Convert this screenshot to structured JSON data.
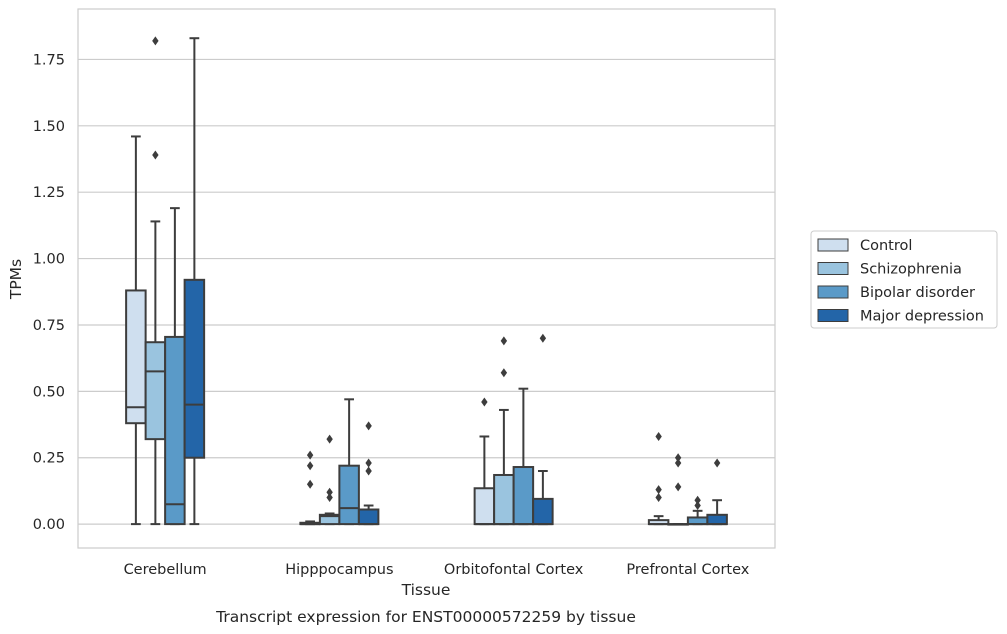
{
  "chart_data": {
    "type": "box",
    "title": "",
    "caption": "Transcript expression for ENST00000572259 by tissue",
    "xlabel": "Tissue",
    "ylabel": "TPMs",
    "ylim": [
      -0.09,
      1.94
    ],
    "yticks": [
      "0.00",
      "0.25",
      "0.50",
      "0.75",
      "1.00",
      "1.25",
      "1.50",
      "1.75"
    ],
    "ytick_values": [
      0,
      0.25,
      0.5,
      0.75,
      1.0,
      1.25,
      1.5,
      1.75
    ],
    "grid": true,
    "legend_position": "right",
    "categories": [
      "Cerebellum",
      "Hipppocampus",
      "Orbitofontal Cortex",
      "Prefrontal Cortex"
    ],
    "series": [
      {
        "name": "Control",
        "color": "#cfdfef",
        "boxes": [
          {
            "whisker_low": 0.0,
            "q1": 0.38,
            "median": 0.44,
            "q3": 0.88,
            "whisker_high": 1.46,
            "outliers": []
          },
          {
            "whisker_low": 0.0,
            "q1": 0.0,
            "median": 0.0,
            "q3": 0.005,
            "whisker_high": 0.01,
            "outliers": [
              0.15,
              0.22,
              0.26
            ]
          },
          {
            "whisker_low": 0.0,
            "q1": 0.0,
            "median": 0.0,
            "q3": 0.135,
            "whisker_high": 0.33,
            "outliers": [
              0.46
            ]
          },
          {
            "whisker_low": 0.0,
            "q1": 0.0,
            "median": 0.0,
            "q3": 0.015,
            "whisker_high": 0.03,
            "outliers": [
              0.1,
              0.13,
              0.33
            ]
          }
        ]
      },
      {
        "name": "Schizophrenia",
        "color": "#9ac4df",
        "boxes": [
          {
            "whisker_low": 0.0,
            "q1": 0.32,
            "median": 0.575,
            "q3": 0.685,
            "whisker_high": 1.14,
            "outliers": [
              1.39,
              1.82
            ]
          },
          {
            "whisker_low": 0.0,
            "q1": 0.0,
            "median": 0.03,
            "q3": 0.035,
            "whisker_high": 0.04,
            "outliers": [
              0.1,
              0.12,
              0.32
            ]
          },
          {
            "whisker_low": 0.0,
            "q1": 0.0,
            "median": 0.0,
            "q3": 0.185,
            "whisker_high": 0.43,
            "outliers": [
              0.57,
              0.69
            ]
          },
          {
            "whisker_low": 0.0,
            "q1": 0.0,
            "median": 0.0,
            "q3": 0.0,
            "whisker_high": 0.0,
            "outliers": [
              0.14,
              0.23,
              0.25
            ]
          }
        ]
      },
      {
        "name": "Bipolar disorder",
        "color": "#5a9ac8",
        "boxes": [
          {
            "whisker_low": 0.0,
            "q1": 0.0,
            "median": 0.075,
            "q3": 0.705,
            "whisker_high": 1.19,
            "outliers": []
          },
          {
            "whisker_low": 0.0,
            "q1": 0.0,
            "median": 0.06,
            "q3": 0.22,
            "whisker_high": 0.47,
            "outliers": []
          },
          {
            "whisker_low": 0.0,
            "q1": 0.0,
            "median": 0.0,
            "q3": 0.215,
            "whisker_high": 0.51,
            "outliers": []
          },
          {
            "whisker_low": 0.0,
            "q1": 0.0,
            "median": 0.0,
            "q3": 0.025,
            "whisker_high": 0.05,
            "outliers": [
              0.07,
              0.09
            ]
          }
        ]
      },
      {
        "name": "Major depression",
        "color": "#2365a8",
        "boxes": [
          {
            "whisker_low": 0.0,
            "q1": 0.25,
            "median": 0.45,
            "q3": 0.92,
            "whisker_high": 1.83,
            "outliers": []
          },
          {
            "whisker_low": 0.0,
            "q1": 0.0,
            "median": 0.0,
            "q3": 0.055,
            "whisker_high": 0.07,
            "outliers": [
              0.2,
              0.23,
              0.37
            ]
          },
          {
            "whisker_low": 0.0,
            "q1": 0.0,
            "median": 0.0,
            "q3": 0.095,
            "whisker_high": 0.2,
            "outliers": [
              0.7
            ]
          },
          {
            "whisker_low": 0.0,
            "q1": 0.0,
            "median": 0.0,
            "q3": 0.035,
            "whisker_high": 0.09,
            "outliers": [
              0.23
            ]
          }
        ]
      }
    ]
  }
}
